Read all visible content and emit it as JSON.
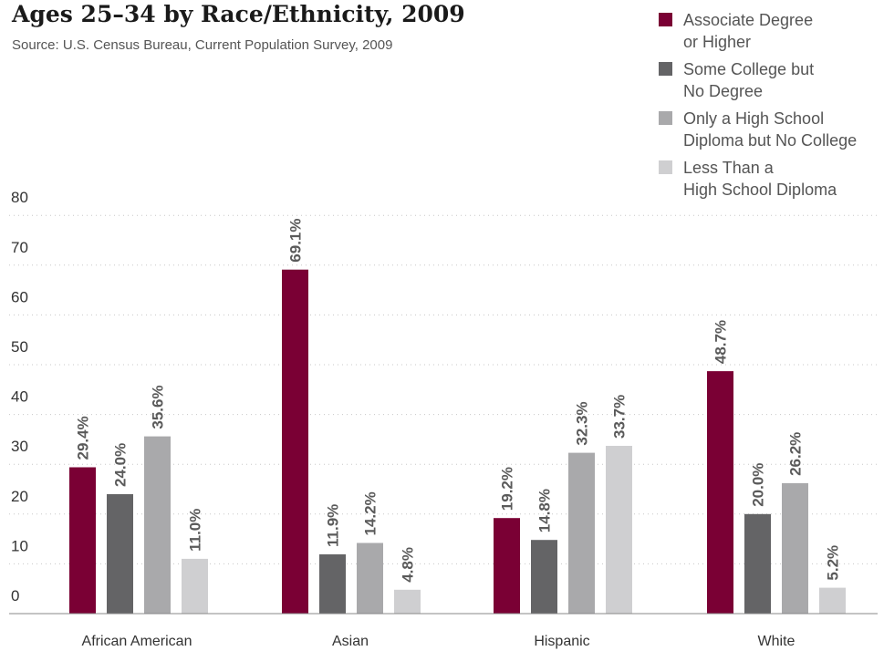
{
  "chart_data": {
    "type": "bar",
    "title": "Ages 25–34 by Race/Ethnicity, 2009",
    "subtitle": "Source: U.S. Census Bureau, Current Population Survey, 2009",
    "categories": [
      "African American",
      "Asian",
      "Hispanic",
      "White"
    ],
    "series": [
      {
        "name": "Associate Degree or Higher",
        "legend_lines": [
          "Associate Degree",
          "or Higher"
        ],
        "color": "#7a0034",
        "values": [
          29.4,
          69.1,
          19.2,
          48.7
        ],
        "labels": [
          "29.4%",
          "69.1%",
          "19.2%",
          "48.7%"
        ]
      },
      {
        "name": "Some College but No Degree",
        "legend_lines": [
          "Some College but",
          "No Degree"
        ],
        "color": "#646466",
        "values": [
          24.0,
          11.9,
          14.8,
          20.0
        ],
        "labels": [
          "24.0%",
          "11.9%",
          "14.8%",
          "20.0%"
        ]
      },
      {
        "name": "Only a High School Diploma but No College",
        "legend_lines": [
          "Only a High School",
          "Diploma but No College"
        ],
        "color": "#a9a9ab",
        "values": [
          35.6,
          14.2,
          32.3,
          26.2
        ],
        "labels": [
          "35.6%",
          "14.2%",
          "32.3%",
          "26.2%"
        ]
      },
      {
        "name": "Less Than a High School Diploma",
        "legend_lines": [
          "Less Than a",
          "High School Diploma"
        ],
        "color": "#cfcfd1",
        "values": [
          11.0,
          4.8,
          33.7,
          5.2
        ],
        "labels": [
          "11.0%",
          "4.8%",
          "33.7%",
          "5.2%"
        ]
      }
    ],
    "ylim": [
      0,
      80
    ],
    "yticks": [
      0,
      10,
      20,
      30,
      40,
      50,
      60,
      70,
      80
    ],
    "grid": true,
    "legend_position": "top-right"
  }
}
